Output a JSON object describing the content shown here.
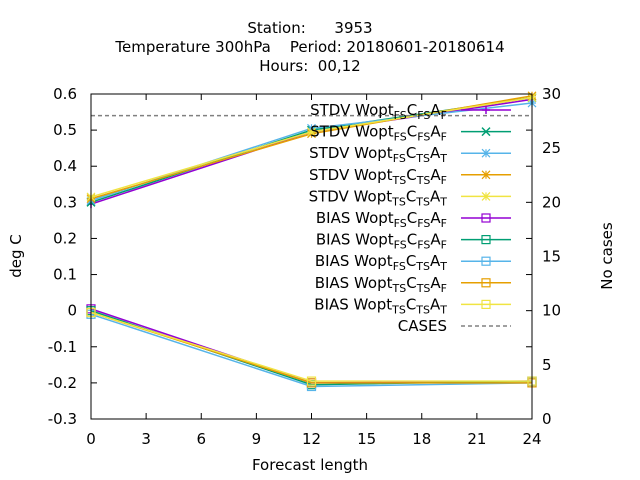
{
  "chart_data": {
    "type": "line",
    "title_lines": [
      "Station:      3953",
      "Temperature 300hPa    Period: 20180601-20180614",
      "Hours:  00,12"
    ],
    "xlabel": "Forecast length",
    "ylabel": "deg C",
    "y2label": "No cases",
    "x": [
      0,
      12,
      24
    ],
    "xticks": [
      "0",
      "3",
      "6",
      "9",
      "12",
      "15",
      "18",
      "21",
      "24"
    ],
    "xlim": [
      0,
      24
    ],
    "ylim": [
      -0.3,
      0.6
    ],
    "yticks": [
      "-0.3",
      "-0.2",
      "-0.1",
      "0",
      "0.1",
      "0.2",
      "0.3",
      "0.4",
      "0.5",
      "0.6"
    ],
    "y2lim": [
      0,
      30
    ],
    "y2ticks": [
      "0",
      "5",
      "10",
      "15",
      "20",
      "25",
      "30"
    ],
    "grid": false,
    "legend_position": "top-right",
    "series": [
      {
        "label_parts": [
          "STDV Wopt",
          "FS",
          "C",
          "FS",
          "A",
          "F"
        ],
        "color": "#9400d3",
        "marker": "plus",
        "axis": "y",
        "values": [
          0.295,
          0.495,
          0.585
        ]
      },
      {
        "label_parts": [
          "STDV Wopt",
          "FS",
          "C",
          "FS",
          "A",
          "F"
        ],
        "color": "#009e73",
        "marker": "cross",
        "axis": "y",
        "values": [
          0.3,
          0.5,
          0.59
        ]
      },
      {
        "label_parts": [
          "STDV Wopt",
          "FS",
          "C",
          "TS",
          "A",
          "T"
        ],
        "color": "#56b4e9",
        "marker": "star",
        "axis": "y",
        "values": [
          0.305,
          0.505,
          0.575
        ]
      },
      {
        "label_parts": [
          "STDV Wopt",
          "TS",
          "C",
          "TS",
          "A",
          "F"
        ],
        "color": "#e69f00",
        "marker": "star",
        "axis": "y",
        "values": [
          0.31,
          0.49,
          0.595
        ]
      },
      {
        "label_parts": [
          "STDV Wopt",
          "TS",
          "C",
          "TS",
          "A",
          "T"
        ],
        "color": "#f0e442",
        "marker": "star",
        "axis": "y",
        "values": [
          0.315,
          0.495,
          0.59
        ]
      },
      {
        "label_parts": [
          "BIAS Wopt",
          "FS",
          "C",
          "FS",
          "A",
          "F"
        ],
        "color": "#9400d3",
        "marker": "square",
        "axis": "y",
        "values": [
          0.005,
          -0.2,
          -0.195
        ]
      },
      {
        "label_parts": [
          "BIAS Wopt",
          "FS",
          "C",
          "FS",
          "A",
          "F"
        ],
        "color": "#009e73",
        "marker": "square",
        "axis": "y",
        "values": [
          0.0,
          -0.205,
          -0.195
        ]
      },
      {
        "label_parts": [
          "BIAS Wopt",
          "FS",
          "C",
          "TS",
          "A",
          "T"
        ],
        "color": "#56b4e9",
        "marker": "square",
        "axis": "y",
        "values": [
          -0.01,
          -0.21,
          -0.2
        ]
      },
      {
        "label_parts": [
          "BIAS Wopt",
          "TS",
          "C",
          "TS",
          "A",
          "F"
        ],
        "color": "#e69f00",
        "marker": "square",
        "axis": "y",
        "values": [
          -0.005,
          -0.2,
          -0.2
        ]
      },
      {
        "label_parts": [
          "BIAS Wopt",
          "TS",
          "C",
          "TS",
          "A",
          "T"
        ],
        "color": "#f0e442",
        "marker": "square",
        "axis": "y",
        "values": [
          -0.005,
          -0.195,
          -0.195
        ]
      },
      {
        "label_parts": [
          "CASES"
        ],
        "color": "#808080",
        "marker": "none",
        "dashed": true,
        "axis": "y2",
        "values": [
          28,
          28,
          28
        ]
      }
    ]
  }
}
